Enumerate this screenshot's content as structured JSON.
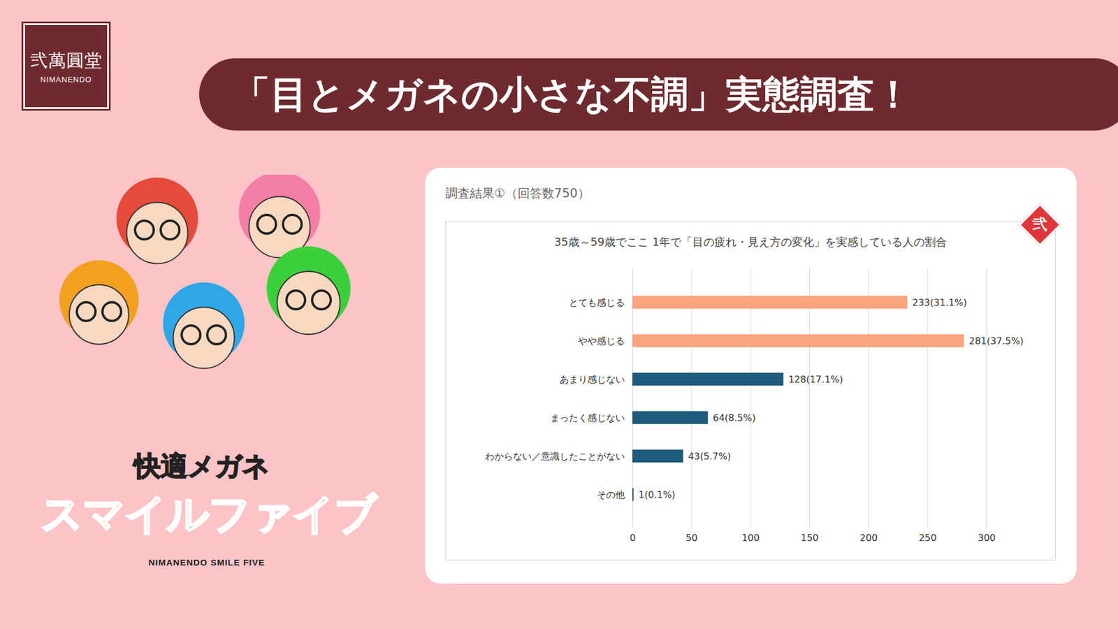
{
  "header": {
    "logo": "弐萬圓堂",
    "logo_sub": "NIMANENDO",
    "title": "「目とメガネの小さな不調」実態調査！"
  },
  "mascot": {
    "title": "快適メガネ",
    "name": "スマイルファイブ",
    "sub": "NIMANENDO SMILE FIVE",
    "badge": "弐"
  },
  "chart_data": {
    "type": "bar",
    "orientation": "horizontal",
    "subtitle": "調査結果①（回答数750）",
    "title": "35歳～59歳でここ 1年で「目の疲れ・見え方の変化」を実感している人の割合",
    "categories": [
      "とても感じる",
      "やや感じる",
      "あまり感じない",
      "まったく感じない",
      "わからない／意識したことがない",
      "その他"
    ],
    "values": [
      233,
      281,
      128,
      64,
      43,
      1
    ],
    "value_labels": [
      "233(31.1%)",
      "281(37.5%)",
      "128(17.1%)",
      "64(8.5%)",
      "43(5.7%)",
      "1(0.1%)"
    ],
    "colors": [
      "#f9a37f",
      "#f9a37f",
      "#1f5b7c",
      "#1f5b7c",
      "#1f5b7c",
      "#1f5b7c"
    ],
    "xlim": [
      0,
      300
    ],
    "xticks": [
      0,
      50,
      100,
      150,
      200,
      250,
      300
    ],
    "grid": true,
    "data_labels": true
  }
}
